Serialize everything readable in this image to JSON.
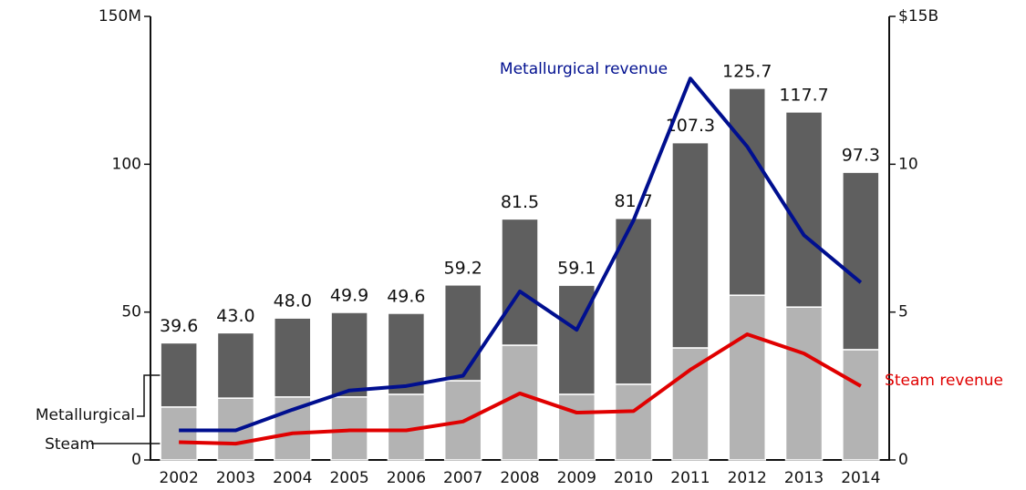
{
  "chart_data": {
    "type": "bar_line",
    "categories": [
      "2002",
      "2003",
      "2004",
      "2005",
      "2006",
      "2007",
      "2008",
      "2009",
      "2010",
      "2011",
      "2012",
      "2013",
      "2014"
    ],
    "series": [
      {
        "name": "Steam",
        "color": "#b3b3b3",
        "values": [
          17.9,
          20.9,
          21.3,
          21.3,
          22.2,
          26.8,
          38.8,
          22.2,
          25.6,
          37.9,
          55.7,
          51.7,
          37.3
        ]
      },
      {
        "name": "Metallurgical",
        "color": "#5f5f5f",
        "values": [
          21.7,
          22.1,
          26.7,
          28.6,
          27.4,
          32.4,
          42.7,
          36.9,
          56.1,
          69.4,
          70.0,
          66.0,
          60.0
        ]
      },
      {
        "name": "Metallurgical revenue",
        "color": "#000f8f",
        "axis": "y2",
        "type": "line",
        "values": [
          1.0,
          1.0,
          1.7,
          2.35,
          2.5,
          2.85,
          5.7,
          4.4,
          8.1,
          12.9,
          10.6,
          7.6,
          6.0
        ]
      },
      {
        "name": "Steam revenue",
        "color": "#e00000",
        "axis": "y2",
        "type": "line",
        "values": [
          0.6,
          0.55,
          0.9,
          1.0,
          1.0,
          1.3,
          2.25,
          1.6,
          1.65,
          3.05,
          4.25,
          3.6,
          2.5
        ]
      }
    ],
    "totals": [
      39.6,
      43.0,
      48.0,
      49.9,
      49.6,
      59.2,
      81.5,
      59.1,
      81.7,
      107.3,
      125.7,
      117.7,
      97.3
    ],
    "total_labels": [
      "39.6",
      "43.0",
      "48.0",
      "49.9",
      "49.6",
      "59.2",
      "81.5",
      "59.1",
      "81.7",
      "107.3",
      "125.7",
      "117.7",
      "97.3"
    ],
    "ylim": [
      0,
      150
    ],
    "yticks": [
      0,
      50,
      100,
      {
        "value": 150,
        "label": "150M"
      }
    ],
    "y2lim": [
      0,
      15
    ],
    "y2ticks": [
      0,
      5,
      10,
      {
        "value": 15,
        "label": "$15B"
      }
    ]
  }
}
